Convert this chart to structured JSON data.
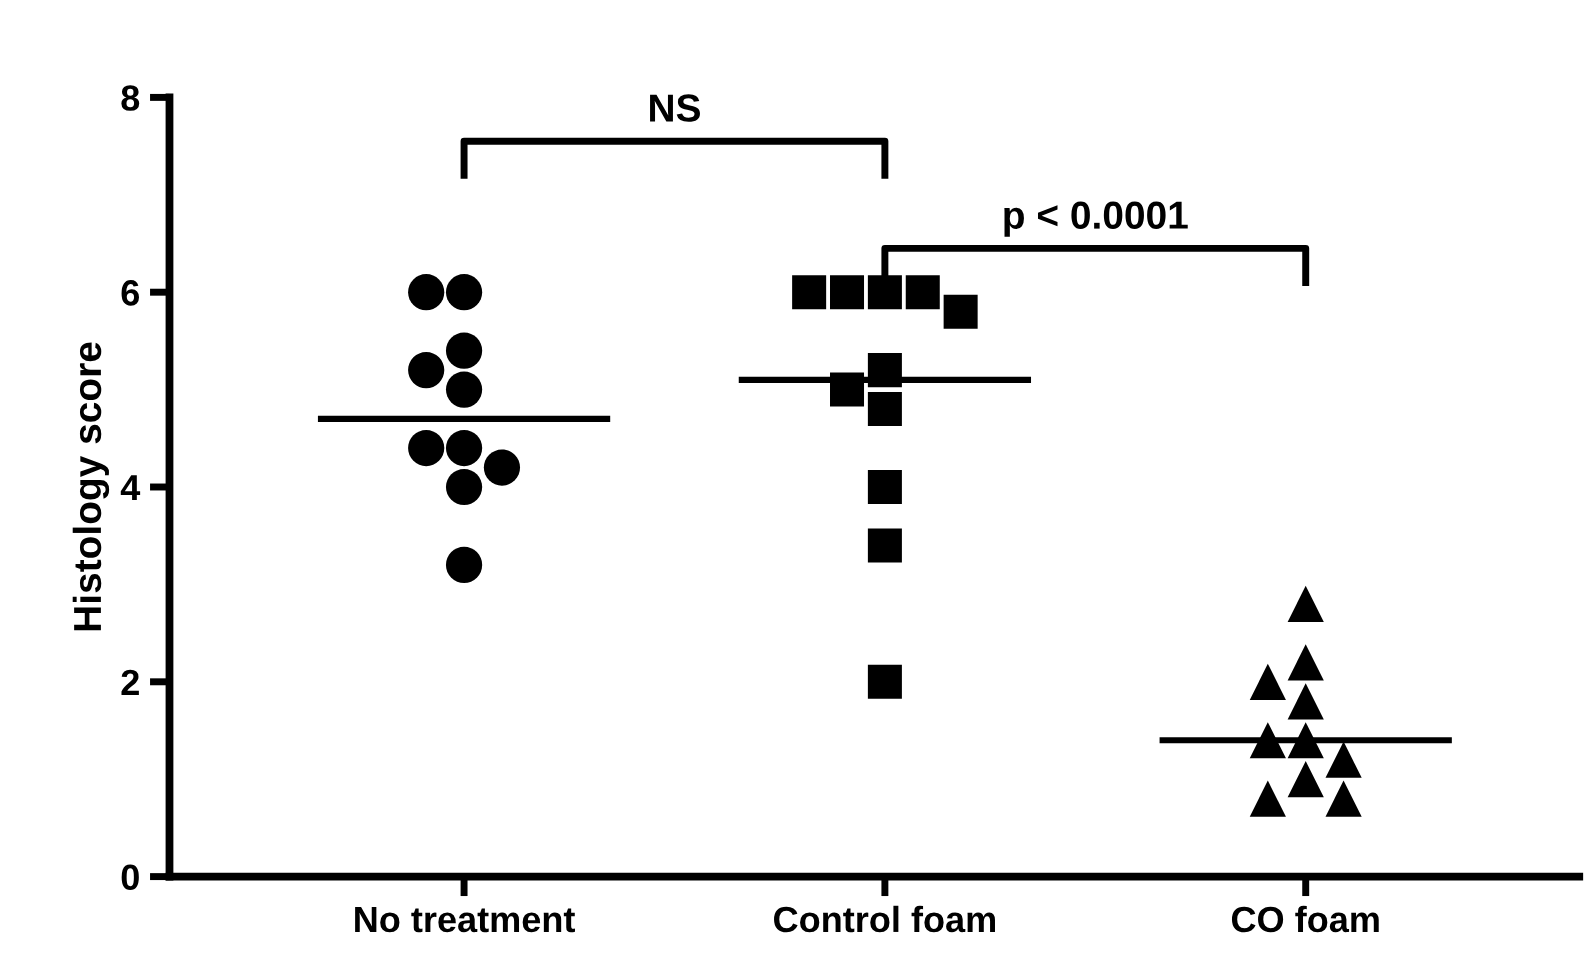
{
  "chart_data": {
    "type": "scatter",
    "ylabel": "Histology score",
    "categories": [
      "No treatment",
      "Control foam",
      "CO foam"
    ],
    "ylim": [
      0,
      8
    ],
    "yticks": [
      0,
      2,
      4,
      6,
      8
    ],
    "grid": false,
    "legend": false,
    "series": [
      {
        "marker": "circle",
        "color": "#000000",
        "x": [
          "No treatment",
          "No treatment",
          "No treatment",
          "No treatment",
          "No treatment",
          "No treatment",
          "No treatment",
          "No treatment",
          "No treatment",
          "No treatment"
        ],
        "values": [
          6,
          6,
          5.4,
          5.2,
          5.0,
          4.4,
          4.4,
          4.2,
          4.0,
          3.2
        ]
      },
      {
        "marker": "square",
        "color": "#000000",
        "x": [
          "Control foam",
          "Control foam",
          "Control foam",
          "Control foam",
          "Control foam",
          "Control foam",
          "Control foam",
          "Control foam",
          "Control foam",
          "Control foam",
          "Control foam"
        ],
        "values": [
          6,
          6,
          6,
          6,
          5.8,
          5.2,
          5.0,
          4.8,
          4.0,
          3.4,
          2.0
        ]
      },
      {
        "marker": "triangle",
        "color": "#000000",
        "x": [
          "CO foam",
          "CO foam",
          "CO foam",
          "CO foam",
          "CO foam",
          "CO foam",
          "CO foam",
          "CO foam",
          "CO foam",
          "CO foam"
        ],
        "values": [
          2.8,
          2.2,
          2.0,
          1.8,
          1.4,
          1.4,
          1.2,
          1.0,
          0.8,
          0.8
        ]
      }
    ],
    "ref_lines": [
      {
        "axis": "y",
        "value": 4.7,
        "color": "#000000",
        "line_style": "solid"
      },
      {
        "axis": "y",
        "value": 5.1,
        "color": "#000000",
        "line_style": "solid"
      },
      {
        "axis": "y",
        "value": 1.4,
        "color": "#000000",
        "line_style": "solid"
      }
    ],
    "annotations": [
      "NS",
      "p < 0.0001"
    ]
  }
}
